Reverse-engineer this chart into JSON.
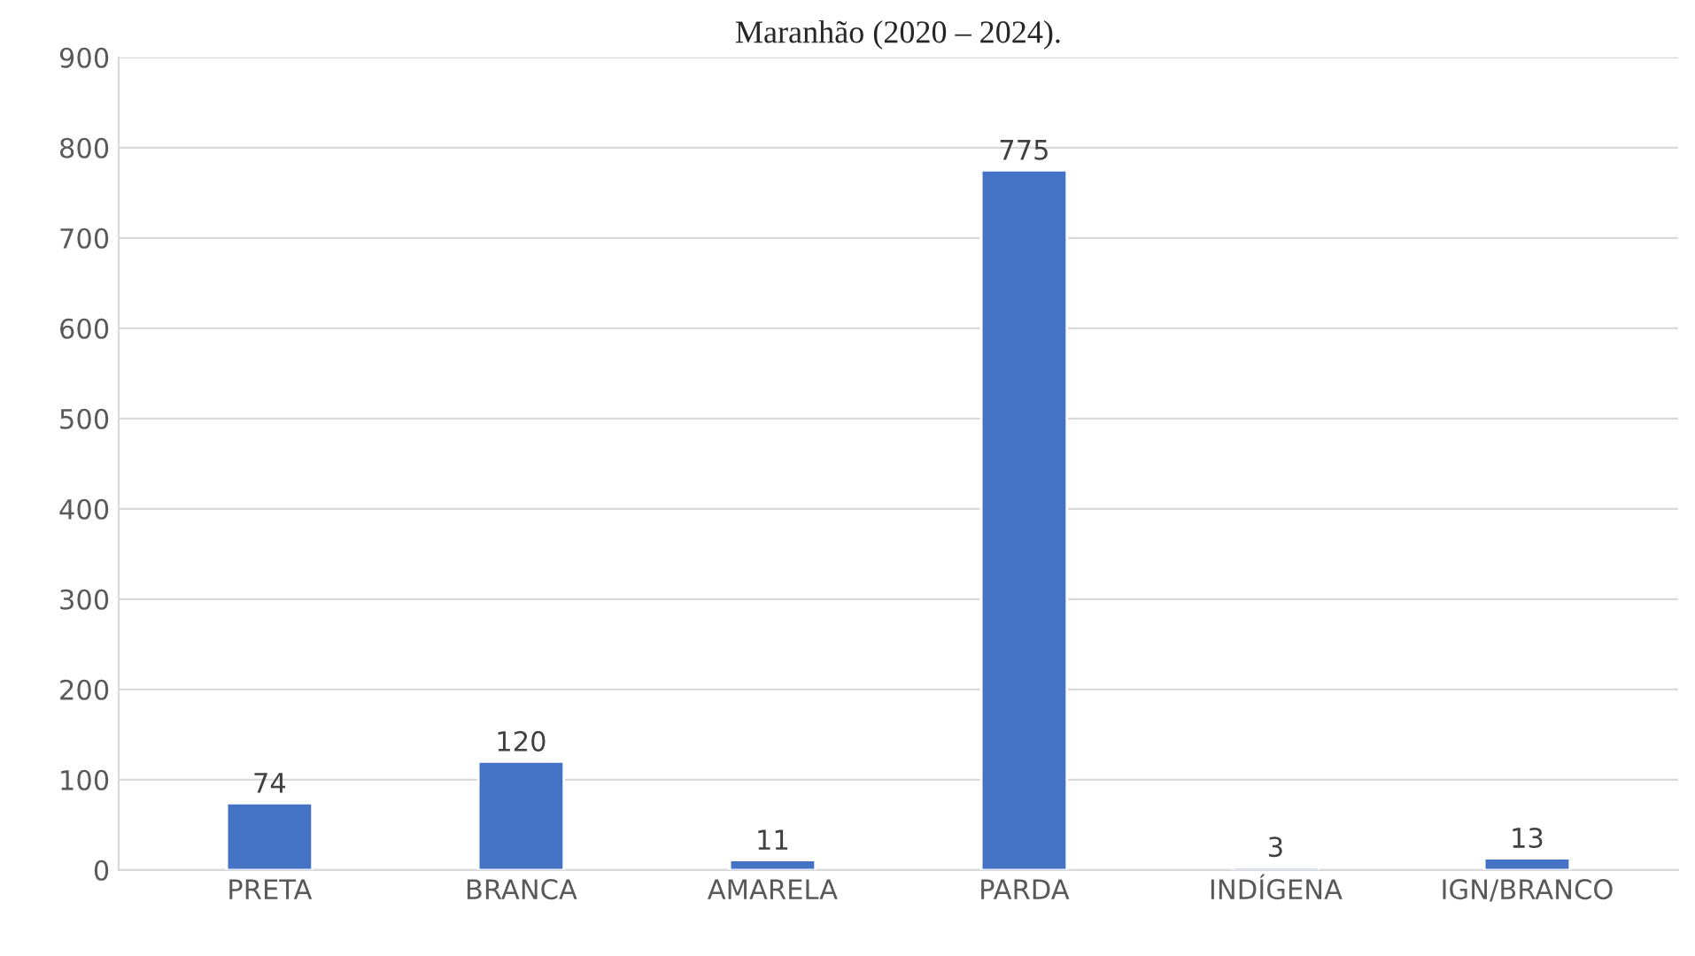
{
  "chart_data": {
    "type": "bar",
    "title": "Maranhão (2020 – 2024).",
    "categories": [
      "PRETA",
      "BRANCA",
      "AMARELA",
      "PARDA",
      "INDÍGENA",
      "IGN/BRANCO"
    ],
    "values": [
      74,
      120,
      11,
      775,
      3,
      13
    ],
    "color": "#4472c4",
    "ylim": [
      0,
      900
    ],
    "yticks": [
      0,
      100,
      200,
      300,
      400,
      500,
      600,
      700,
      800,
      900
    ],
    "grid": "y",
    "data_labels": true
  }
}
